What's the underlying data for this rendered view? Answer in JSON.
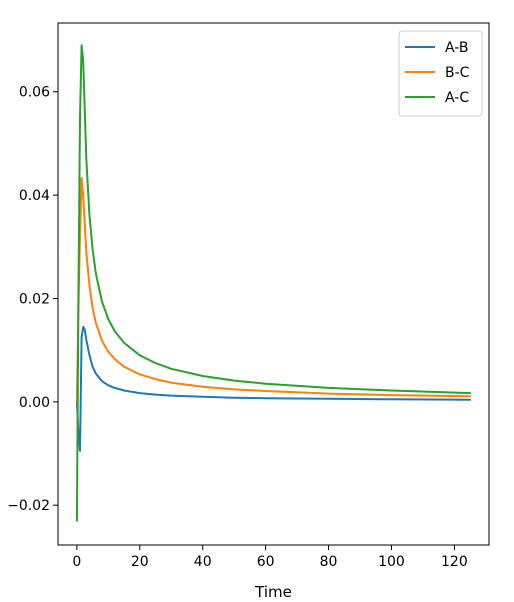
{
  "chart_data": {
    "type": "line",
    "title": "",
    "xlabel": "Time",
    "ylabel": "",
    "xlim": [
      -6,
      131
    ],
    "ylim": [
      -0.0277,
      0.0733
    ],
    "xticks": [
      0,
      20,
      40,
      60,
      80,
      100,
      120
    ],
    "xtick_labels": [
      "0",
      "20",
      "40",
      "60",
      "80",
      "100",
      "120"
    ],
    "yticks": [
      -0.02,
      0.0,
      0.02,
      0.04,
      0.06
    ],
    "ytick_labels": [
      "−0.02",
      "0.00",
      "0.02",
      "0.04",
      "0.06"
    ],
    "grid": false,
    "legend": "top-right",
    "series": [
      {
        "name": "A-B",
        "color": "#1f77b4",
        "x": [
          0,
          0.5,
          1,
          1.5,
          2,
          2.5,
          3,
          4,
          5,
          6,
          8,
          10,
          12,
          15,
          20,
          25,
          30,
          40,
          50,
          60,
          80,
          100,
          125
        ],
        "y": [
          0.0,
          -0.006,
          -0.0095,
          0.0125,
          0.0145,
          0.014,
          0.012,
          0.009,
          0.0068,
          0.0055,
          0.004,
          0.0032,
          0.0027,
          0.0022,
          0.0017,
          0.0014,
          0.0012,
          0.001,
          0.0008,
          0.0007,
          0.0006,
          0.0005,
          0.0004
        ]
      },
      {
        "name": "B-C",
        "color": "#ff7f0e",
        "x": [
          0,
          0.5,
          1,
          1.5,
          2,
          3,
          4,
          5,
          6,
          8,
          10,
          12,
          15,
          20,
          25,
          30,
          40,
          50,
          60,
          80,
          100,
          125
        ],
        "y": [
          0.0,
          0.018,
          0.032,
          0.0433,
          0.04,
          0.029,
          0.0225,
          0.0182,
          0.0153,
          0.0118,
          0.0097,
          0.0083,
          0.0068,
          0.0053,
          0.0044,
          0.0037,
          0.0029,
          0.0024,
          0.0021,
          0.0016,
          0.0013,
          0.0011
        ]
      },
      {
        "name": "A-C",
        "color": "#2ca02c",
        "x": [
          0,
          0.5,
          1,
          1.5,
          2,
          3,
          4,
          5,
          6,
          8,
          10,
          12,
          15,
          20,
          25,
          30,
          40,
          50,
          60,
          80,
          100,
          125
        ],
        "y": [
          -0.023,
          0.02,
          0.055,
          0.069,
          0.066,
          0.047,
          0.036,
          0.0295,
          0.0249,
          0.0194,
          0.016,
          0.0137,
          0.0114,
          0.009,
          0.0075,
          0.0064,
          0.005,
          0.0041,
          0.0035,
          0.0027,
          0.0022,
          0.0017
        ]
      }
    ]
  }
}
